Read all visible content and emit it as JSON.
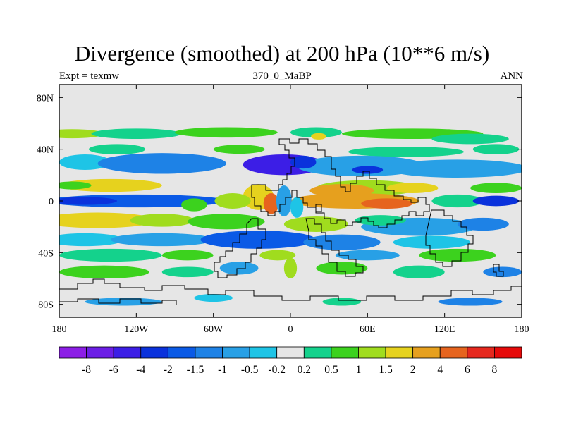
{
  "chart_data": {
    "type": "heatmap",
    "title": "Divergence (smoothed) at 200 hPa (10**6 m/s)",
    "left_string": "Expt = texmw",
    "center_string": "370_0_MaBP",
    "right_string": "ANN",
    "x_range": [
      -180,
      180
    ],
    "y_range": [
      -90,
      90
    ],
    "x_ticks": [
      {
        "value": -180,
        "label": "180"
      },
      {
        "value": -120,
        "label": "120W"
      },
      {
        "value": -60,
        "label": "60W"
      },
      {
        "value": 0,
        "label": "0"
      },
      {
        "value": 60,
        "label": "60E"
      },
      {
        "value": 120,
        "label": "120E"
      },
      {
        "value": 180,
        "label": "180"
      }
    ],
    "y_ticks": [
      {
        "value": 80,
        "label": "80N"
      },
      {
        "value": 40,
        "label": "40N"
      },
      {
        "value": 0,
        "label": "0"
      },
      {
        "value": -40,
        "label": "40S"
      },
      {
        "value": -80,
        "label": "80S"
      }
    ],
    "levels": [
      "-8",
      "-6",
      "-4",
      "-2",
      "-1.5",
      "-1",
      "-0.5",
      "-0.2",
      "0.2",
      "0.5",
      "1",
      "1.5",
      "2",
      "4",
      "6",
      "8"
    ],
    "colors": [
      "#8c1ee6",
      "#6c1ee6",
      "#3c1ee6",
      "#0a32dc",
      "#0a5ae6",
      "#1e82e6",
      "#28a0e6",
      "#1ec4e6",
      "#e6e6e6",
      "#14d28c",
      "#3cd21e",
      "#a0dc1e",
      "#e6d21e",
      "#e6a01e",
      "#e6641e",
      "#e6281e",
      "#e60a0a"
    ],
    "features": [
      {
        "lon": -170,
        "lat": 52,
        "sx": 25,
        "sy": 3.5,
        "class": 11
      },
      {
        "lon": -120,
        "lat": 52,
        "sx": 35,
        "sy": 4,
        "class": 9
      },
      {
        "lon": -50,
        "lat": 53,
        "sx": 40,
        "sy": 4,
        "class": 10
      },
      {
        "lon": 20,
        "lat": 53,
        "sx": 20,
        "sy": 4,
        "class": 9
      },
      {
        "lon": 22,
        "lat": 50,
        "sx": 6,
        "sy": 2.5,
        "class": 12
      },
      {
        "lon": 95,
        "lat": 52,
        "sx": 55,
        "sy": 4,
        "class": 10
      },
      {
        "lon": 140,
        "lat": 48,
        "sx": 30,
        "sy": 4,
        "class": 9
      },
      {
        "lon": -135,
        "lat": 40,
        "sx": 22,
        "sy": 4,
        "class": 9
      },
      {
        "lon": -40,
        "lat": 40,
        "sx": 20,
        "sy": 3.5,
        "class": 10
      },
      {
        "lon": 90,
        "lat": 38,
        "sx": 45,
        "sy": 4,
        "class": 9
      },
      {
        "lon": 160,
        "lat": 40,
        "sx": 18,
        "sy": 4,
        "class": 9
      },
      {
        "lon": -160,
        "lat": 30,
        "sx": 20,
        "sy": 6,
        "class": 7
      },
      {
        "lon": -100,
        "lat": 29,
        "sx": 50,
        "sy": 8,
        "class": 5
      },
      {
        "lon": -5,
        "lat": 28,
        "sx": 32,
        "sy": 8,
        "class": 2
      },
      {
        "lon": 55,
        "lat": 27,
        "sx": 50,
        "sy": 8,
        "class": 6
      },
      {
        "lon": 60,
        "lat": 24,
        "sx": 12,
        "sy": 3,
        "class": 3
      },
      {
        "lon": 130,
        "lat": 25,
        "sx": 55,
        "sy": 7,
        "class": 6
      },
      {
        "lon": 10,
        "lat": 30,
        "sx": 10,
        "sy": 5,
        "class": 3
      },
      {
        "lon": -140,
        "lat": 12,
        "sx": 40,
        "sy": 5,
        "class": 12
      },
      {
        "lon": -170,
        "lat": 12,
        "sx": 15,
        "sy": 3,
        "class": 10
      },
      {
        "lon": 60,
        "lat": 10,
        "sx": 40,
        "sy": 6,
        "class": 11
      },
      {
        "lon": 40,
        "lat": 8,
        "sx": 25,
        "sy": 5,
        "class": 13
      },
      {
        "lon": 95,
        "lat": 10,
        "sx": 20,
        "sy": 4,
        "class": 12
      },
      {
        "lon": 160,
        "lat": 10,
        "sx": 20,
        "sy": 4,
        "class": 10
      },
      {
        "lon": -120,
        "lat": 0,
        "sx": 70,
        "sy": 5,
        "class": 4
      },
      {
        "lon": -160,
        "lat": 0,
        "sx": 25,
        "sy": 3,
        "class": 3
      },
      {
        "lon": -25,
        "lat": 3,
        "sx": 12,
        "sy": 10,
        "class": 12
      },
      {
        "lon": -15,
        "lat": -2,
        "sx": 6,
        "sy": 8,
        "class": 14
      },
      {
        "lon": -45,
        "lat": 0,
        "sx": 14,
        "sy": 6,
        "class": 11
      },
      {
        "lon": -75,
        "lat": -3,
        "sx": 10,
        "sy": 5,
        "class": 10
      },
      {
        "lon": 50,
        "lat": 0,
        "sx": 50,
        "sy": 6,
        "class": 13
      },
      {
        "lon": 75,
        "lat": -2,
        "sx": 20,
        "sy": 4,
        "class": 14
      },
      {
        "lon": 130,
        "lat": 0,
        "sx": 20,
        "sy": 5,
        "class": 9
      },
      {
        "lon": 160,
        "lat": 0,
        "sx": 18,
        "sy": 4,
        "class": 3
      },
      {
        "lon": -5,
        "lat": 0,
        "sx": 6,
        "sy": 12,
        "class": 6
      },
      {
        "lon": 5,
        "lat": -5,
        "sx": 5,
        "sy": 8,
        "class": 7
      },
      {
        "lon": -150,
        "lat": -15,
        "sx": 45,
        "sy": 6,
        "class": 12
      },
      {
        "lon": -100,
        "lat": -15,
        "sx": 25,
        "sy": 5,
        "class": 11
      },
      {
        "lon": -50,
        "lat": -16,
        "sx": 30,
        "sy": 6,
        "class": 10
      },
      {
        "lon": 20,
        "lat": -18,
        "sx": 25,
        "sy": 6,
        "class": 11
      },
      {
        "lon": 100,
        "lat": -20,
        "sx": 45,
        "sy": 7,
        "class": 6
      },
      {
        "lon": 150,
        "lat": -18,
        "sx": 20,
        "sy": 5,
        "class": 5
      },
      {
        "lon": 70,
        "lat": -15,
        "sx": 20,
        "sy": 4,
        "class": 9
      },
      {
        "lon": -160,
        "lat": -30,
        "sx": 30,
        "sy": 5,
        "class": 7
      },
      {
        "lon": -100,
        "lat": -30,
        "sx": 40,
        "sy": 5,
        "class": 6
      },
      {
        "lon": -25,
        "lat": -30,
        "sx": 45,
        "sy": 7,
        "class": 4
      },
      {
        "lon": 40,
        "lat": -32,
        "sx": 30,
        "sy": 6,
        "class": 5
      },
      {
        "lon": 110,
        "lat": -32,
        "sx": 30,
        "sy": 5,
        "class": 7
      },
      {
        "lon": -140,
        "lat": -42,
        "sx": 40,
        "sy": 5,
        "class": 9
      },
      {
        "lon": -80,
        "lat": -42,
        "sx": 20,
        "sy": 4,
        "class": 10
      },
      {
        "lon": -10,
        "lat": -42,
        "sx": 14,
        "sy": 4,
        "class": 11
      },
      {
        "lon": 60,
        "lat": -42,
        "sx": 25,
        "sy": 4,
        "class": 6
      },
      {
        "lon": 130,
        "lat": -42,
        "sx": 30,
        "sy": 5,
        "class": 10
      },
      {
        "lon": -145,
        "lat": -55,
        "sx": 35,
        "sy": 5,
        "class": 10
      },
      {
        "lon": -80,
        "lat": -55,
        "sx": 20,
        "sy": 4,
        "class": 9
      },
      {
        "lon": -40,
        "lat": -52,
        "sx": 15,
        "sy": 5,
        "class": 6
      },
      {
        "lon": 0,
        "lat": -52,
        "sx": 5,
        "sy": 8,
        "class": 11
      },
      {
        "lon": 40,
        "lat": -52,
        "sx": 20,
        "sy": 5,
        "class": 10
      },
      {
        "lon": 100,
        "lat": -55,
        "sx": 20,
        "sy": 5,
        "class": 9
      },
      {
        "lon": 165,
        "lat": -55,
        "sx": 15,
        "sy": 4,
        "class": 5
      },
      {
        "lon": -130,
        "lat": -78,
        "sx": 30,
        "sy": 3,
        "class": 6
      },
      {
        "lon": -60,
        "lat": -75,
        "sx": 15,
        "sy": 3,
        "class": 7
      },
      {
        "lon": 140,
        "lat": -78,
        "sx": 25,
        "sy": 3,
        "class": 5
      },
      {
        "lon": 40,
        "lat": -78,
        "sx": 15,
        "sy": 3,
        "class": 9
      }
    ]
  }
}
